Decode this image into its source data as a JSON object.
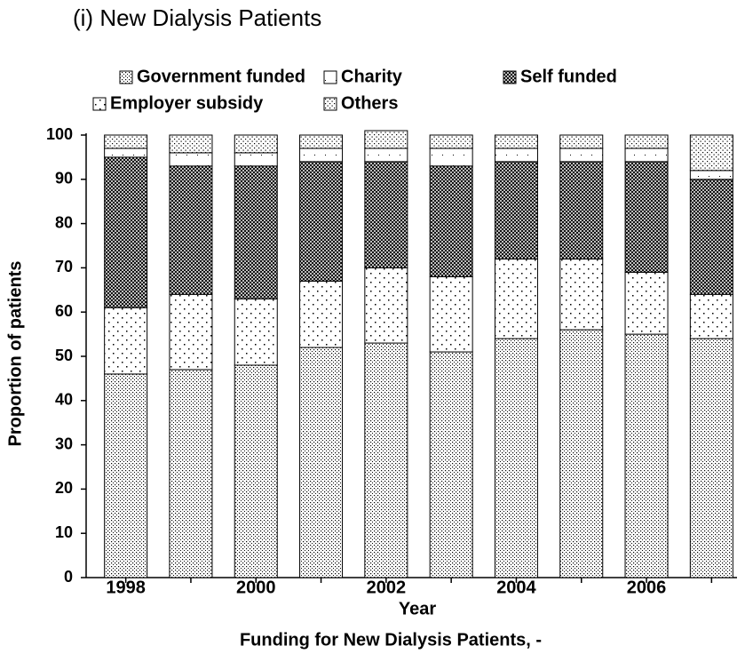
{
  "chart_data": {
    "type": "stacked_bar",
    "title": "(i) New Dialysis Patients",
    "caption": "Funding for New Dialysis Patients, -",
    "x_label": "Year",
    "y_label": "Proportion of patients",
    "categories": [
      "1998",
      null,
      "2000",
      null,
      "2002",
      null,
      "2004",
      null,
      "2006",
      null
    ],
    "series": [
      {
        "name": "Government funded",
        "color": "#000000",
        "values": [
          46,
          47,
          48,
          52,
          53,
          51,
          54,
          56,
          55,
          54
        ]
      },
      {
        "name": "Employer subsidy",
        "color": "#000000",
        "values": [
          15,
          17,
          15,
          15,
          17,
          17,
          18,
          16,
          14,
          10
        ]
      },
      {
        "name": "Self funded",
        "color": "#000000",
        "values": [
          34,
          29,
          30,
          27,
          24,
          25,
          22,
          22,
          25,
          26
        ]
      },
      {
        "name": "Charity",
        "color": "#000000",
        "values": [
          2,
          3,
          3,
          3,
          3,
          4,
          3,
          3,
          3,
          2
        ]
      },
      {
        "name": "Others",
        "color": "#000000",
        "values": [
          3,
          4,
          4,
          3,
          4,
          3,
          3,
          3,
          3,
          8
        ]
      }
    ],
    "ylim": [
      0,
      100
    ],
    "yticks": [
      0,
      10,
      20,
      30,
      40,
      50,
      60,
      70,
      80,
      90,
      100
    ],
    "grid": false
  }
}
